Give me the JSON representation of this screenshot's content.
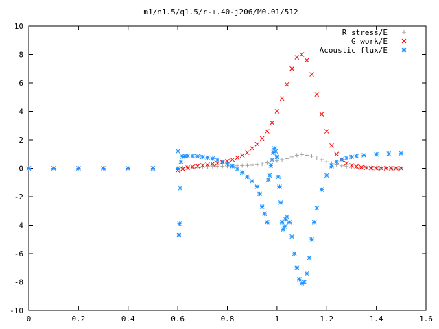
{
  "chart_data": {
    "type": "scatter",
    "title": "m1/n1.5/q1.5/r-+.40-j206/M0.01/512",
    "xlabel": "",
    "ylabel": "",
    "xlim": [
      0,
      1.6
    ],
    "ylim": [
      -10,
      10
    ],
    "x_ticks": [
      "0",
      "0.2",
      "0.4",
      "0.6",
      "0.8",
      "1",
      "1.2",
      "1.4",
      "1.6"
    ],
    "y_ticks": [
      "-10",
      "-8",
      "-6",
      "-4",
      "-2",
      "0",
      "2",
      "4",
      "6",
      "8",
      "10"
    ],
    "legend_position": "top-right",
    "grid": false,
    "series": [
      {
        "name": "R stress/E",
        "marker": "plus",
        "color": "#a0a0a0",
        "x": [
          0.0,
          0.1,
          0.2,
          0.3,
          0.4,
          0.5,
          0.6,
          0.62,
          0.64,
          0.66,
          0.68,
          0.7,
          0.72,
          0.74,
          0.76,
          0.78,
          0.8,
          0.82,
          0.84,
          0.86,
          0.88,
          0.9,
          0.92,
          0.94,
          0.96,
          0.98,
          1.0,
          1.02,
          1.04,
          1.06,
          1.08,
          1.1,
          1.12,
          1.14,
          1.16,
          1.18,
          1.2,
          1.22,
          1.24,
          1.26,
          1.28,
          1.3,
          1.32,
          1.34,
          1.36,
          1.38,
          1.4,
          1.42,
          1.44,
          1.46,
          1.48,
          1.5
        ],
        "y": [
          0.0,
          0.0,
          0.0,
          0.0,
          0.0,
          0.0,
          0.01,
          0.03,
          0.05,
          0.07,
          0.09,
          0.11,
          0.12,
          0.13,
          0.14,
          0.15,
          0.16,
          0.17,
          0.18,
          0.19,
          0.2,
          0.22,
          0.25,
          0.3,
          0.38,
          0.45,
          0.52,
          0.6,
          0.68,
          0.8,
          0.92,
          0.97,
          0.92,
          0.85,
          0.72,
          0.6,
          0.45,
          0.33,
          0.24,
          0.18,
          0.13,
          0.1,
          0.08,
          0.06,
          0.05,
          0.04,
          0.03,
          0.02,
          0.02,
          0.01,
          0.01,
          0.01
        ]
      },
      {
        "name": "G work/E",
        "marker": "cross",
        "color": "#ff0000",
        "x": [
          0.0,
          0.1,
          0.2,
          0.3,
          0.4,
          0.5,
          0.6,
          0.62,
          0.64,
          0.66,
          0.68,
          0.7,
          0.72,
          0.74,
          0.76,
          0.78,
          0.8,
          0.82,
          0.84,
          0.86,
          0.88,
          0.9,
          0.92,
          0.94,
          0.96,
          0.98,
          1.0,
          1.02,
          1.04,
          1.06,
          1.08,
          1.1,
          1.12,
          1.14,
          1.16,
          1.18,
          1.2,
          1.22,
          1.24,
          1.26,
          1.28,
          1.3,
          1.32,
          1.34,
          1.36,
          1.38,
          1.4,
          1.42,
          1.44,
          1.46,
          1.48,
          1.5
        ],
        "y": [
          0.0,
          0.0,
          0.0,
          0.0,
          0.0,
          0.0,
          -0.15,
          -0.05,
          0.05,
          0.1,
          0.15,
          0.2,
          0.25,
          0.3,
          0.35,
          0.42,
          0.5,
          0.6,
          0.75,
          0.9,
          1.1,
          1.4,
          1.7,
          2.1,
          2.6,
          3.2,
          4.0,
          4.9,
          5.9,
          7.0,
          7.8,
          8.0,
          7.6,
          6.6,
          5.2,
          3.8,
          2.6,
          1.6,
          1.0,
          0.6,
          0.35,
          0.2,
          0.12,
          0.07,
          0.04,
          0.02,
          0.01,
          0.0,
          0.0,
          0.0,
          0.0,
          0.0
        ]
      },
      {
        "name": "Acoustic flux/E",
        "marker": "star",
        "color": "#1e90ff",
        "x": [
          0.0,
          0.1,
          0.2,
          0.3,
          0.4,
          0.5,
          0.6,
          0.601,
          0.605,
          0.607,
          0.61,
          0.613,
          0.62,
          0.63,
          0.64,
          0.66,
          0.68,
          0.7,
          0.72,
          0.74,
          0.76,
          0.78,
          0.8,
          0.82,
          0.84,
          0.86,
          0.88,
          0.9,
          0.92,
          0.93,
          0.94,
          0.95,
          0.96,
          0.965,
          0.97,
          0.975,
          0.98,
          0.985,
          0.99,
          0.995,
          1.0,
          1.005,
          1.01,
          1.015,
          1.02,
          1.025,
          1.03,
          1.035,
          1.04,
          1.05,
          1.06,
          1.07,
          1.08,
          1.09,
          1.1,
          1.11,
          1.12,
          1.13,
          1.14,
          1.15,
          1.16,
          1.18,
          1.2,
          1.22,
          1.24,
          1.26,
          1.28,
          1.3,
          1.32,
          1.35,
          1.4,
          1.45,
          1.5
        ],
        "y": [
          0.0,
          0.0,
          0.0,
          0.0,
          0.0,
          0.0,
          0.0,
          1.2,
          -4.7,
          -3.9,
          -1.4,
          0.45,
          0.82,
          0.85,
          0.87,
          0.86,
          0.84,
          0.8,
          0.75,
          0.68,
          0.58,
          0.46,
          0.32,
          0.15,
          -0.05,
          -0.3,
          -0.6,
          -0.9,
          -1.3,
          -1.8,
          -2.7,
          -3.2,
          -3.8,
          -0.8,
          -0.5,
          0.2,
          0.6,
          1.1,
          1.4,
          1.2,
          0.8,
          -0.6,
          -1.3,
          -2.4,
          -3.8,
          -4.3,
          -4.1,
          -3.6,
          -3.4,
          -3.8,
          -4.8,
          -6.0,
          -7.0,
          -7.8,
          -8.1,
          -8.0,
          -7.4,
          -6.3,
          -5.0,
          -3.8,
          -2.8,
          -1.5,
          -0.5,
          0.15,
          0.45,
          0.62,
          0.72,
          0.8,
          0.86,
          0.92,
          0.98,
          1.02,
          1.05
        ]
      }
    ]
  }
}
